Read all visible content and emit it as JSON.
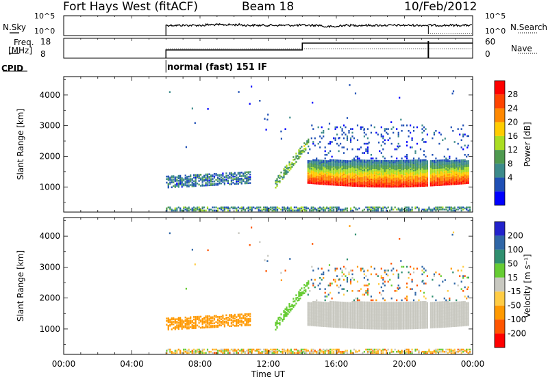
{
  "header": {
    "radar": "Fort Hays West (fitACF)",
    "beam": "Beam 18",
    "date": "10/Feb/2012"
  },
  "summary_panels": {
    "nsky_label": "N.Sky",
    "nsearch_label": "N.Search",
    "noise_ticks_left": [
      "10^5",
      "10^0"
    ],
    "noise_ticks_right": [
      "10^5",
      "10^0"
    ],
    "freq_label_line1": "Freq.",
    "freq_label_line2": "[MHz]",
    "freq_ticks": [
      "18",
      "8"
    ],
    "nave_label": "Nave",
    "nave_ticks": [
      "60",
      "0"
    ],
    "cpid_label": "CPID",
    "cpid_value": "normal (fast) 151 IF"
  },
  "colors": {
    "power_scale": [
      "#0000ff",
      "#1f4fb5",
      "#3c8a8a",
      "#4f9a4f",
      "#aadd22",
      "#ffcc00",
      "#ff8800",
      "#ff4400",
      "#ff0000"
    ],
    "velocity_scale": [
      "#ff0000",
      "#ff5500",
      "#ff9900",
      "#ffcc44",
      "#c8c8c0",
      "#66cc33",
      "#2f8f6f",
      "#2f66a6",
      "#2222cc"
    ],
    "ground_scatter": "#c0c0bc"
  },
  "chart_data": [
    {
      "type": "heatmap",
      "title": "",
      "xlabel": "Time UT",
      "ylabel": "Slant Range [km]",
      "colorbar_label": "Power [dB]",
      "colorbar_ticks": [
        "28",
        "24",
        "20",
        "16",
        "12",
        "8",
        "4"
      ],
      "colorbar_range": [
        0,
        32
      ],
      "xlim_hours": [
        0,
        24
      ],
      "ylim": [
        180,
        4600
      ],
      "xticks": [
        "00:00",
        "04:00",
        "08:00",
        "12:00",
        "16:00",
        "20:00",
        "00:00"
      ],
      "yticks": [
        "1000",
        "2000",
        "3000",
        "4000"
      ],
      "features": [
        {
          "kind": "near-range band",
          "t_start_h": 6.0,
          "t_end_h": 24.0,
          "range_km": [
            200,
            320
          ],
          "power_db": [
            4,
            16
          ]
        },
        {
          "kind": "morning patch",
          "t_start_h": 6.0,
          "t_end_h": 10.9,
          "range_km": [
            950,
            1400
          ],
          "power_db": [
            4,
            14
          ]
        },
        {
          "kind": "main ionospheric band",
          "t_start_h": 14.3,
          "t_end_h": 23.8,
          "range_km": [
            1100,
            1850
          ],
          "power_db": [
            8,
            32
          ]
        },
        {
          "kind": "rising streak",
          "t_start_h": 12.4,
          "t_end_h": 14.4,
          "range_km": [
            1100,
            2600
          ],
          "power_db": [
            6,
            20
          ]
        },
        {
          "kind": "data gap",
          "t_start_h": 21.35,
          "t_end_h": 21.5,
          "range_km": [
            1000,
            2200
          ],
          "power_db": null
        }
      ]
    },
    {
      "type": "heatmap",
      "title": "",
      "xlabel": "Time UT",
      "ylabel": "Slant Range [km]",
      "colorbar_label": "Velocity [m s⁻¹]",
      "colorbar_ticks": [
        "200",
        "100",
        "50",
        "15",
        "-15",
        "-50",
        "-100",
        "-200"
      ],
      "colorbar_range": [
        -250,
        250
      ],
      "xlim_hours": [
        0,
        24
      ],
      "ylim": [
        180,
        4600
      ],
      "xticks": [
        "00:00",
        "04:00",
        "08:00",
        "12:00",
        "16:00",
        "20:00",
        "00:00"
      ],
      "yticks": [
        "1000",
        "2000",
        "3000",
        "4000"
      ],
      "features": [
        {
          "kind": "near-range band",
          "t_start_h": 6.0,
          "t_end_h": 24.0,
          "range_km": [
            200,
            320
          ],
          "velocity": [
            -100,
            50
          ]
        },
        {
          "kind": "morning patch",
          "t_start_h": 6.0,
          "t_end_h": 10.9,
          "range_km": [
            950,
            1400
          ],
          "velocity": [
            -100,
            -50
          ]
        },
        {
          "kind": "ground scatter band",
          "t_start_h": 14.3,
          "t_end_h": 23.8,
          "range_km": [
            1100,
            1850
          ],
          "velocity": [
            -15,
            15
          ]
        },
        {
          "kind": "rising streak",
          "t_start_h": 12.4,
          "t_end_h": 14.4,
          "range_km": [
            1100,
            2600
          ],
          "velocity": [
            15,
            50
          ]
        }
      ]
    }
  ]
}
